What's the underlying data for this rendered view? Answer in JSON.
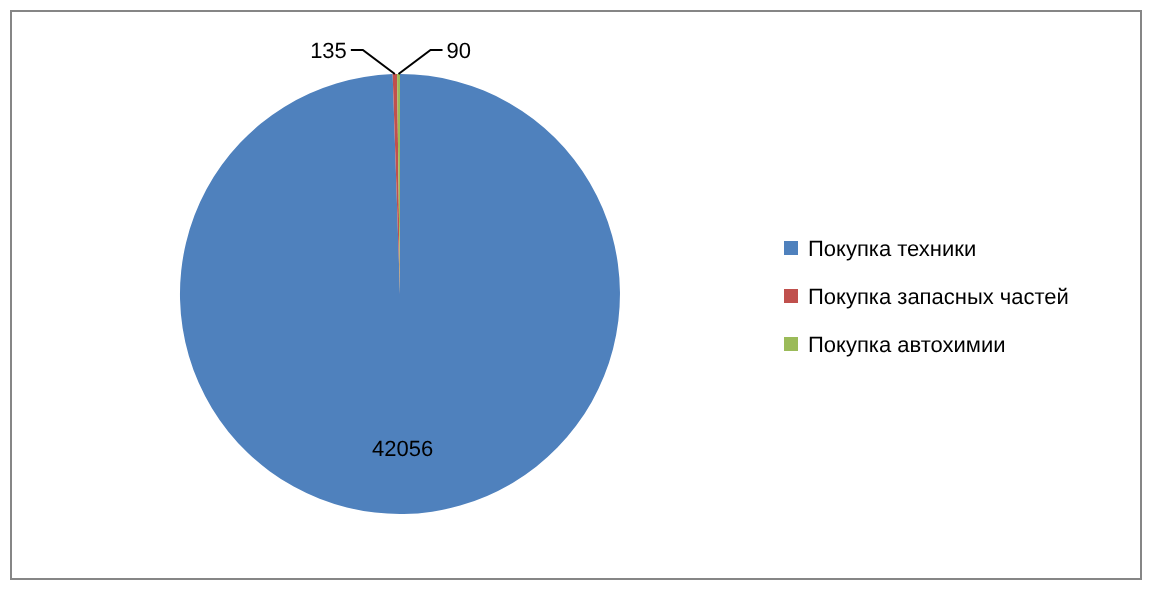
{
  "chart_data": {
    "type": "pie",
    "categories": [
      "Покупка техники",
      "Покупка запасных частей",
      "Покупка автохимии"
    ],
    "values": [
      42056,
      135,
      90
    ],
    "colors": [
      "#4f81bd",
      "#c0504d",
      "#9bbb59"
    ],
    "data_labels": true,
    "legend": "right"
  }
}
